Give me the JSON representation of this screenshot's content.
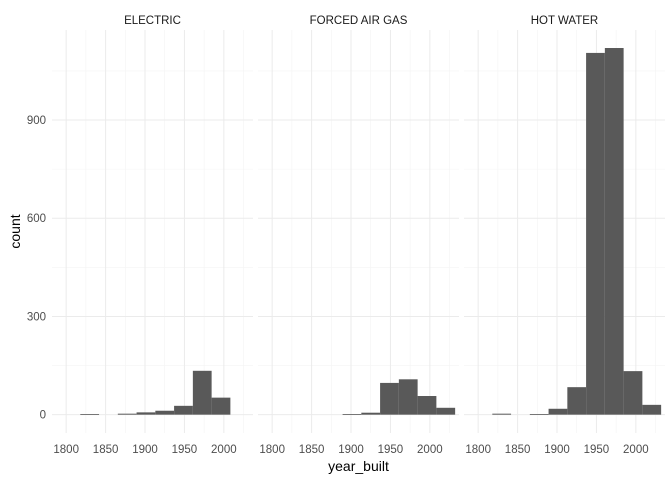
{
  "chart_data": {
    "type": "bar",
    "subtype": "histogram-faceted",
    "xlabel": "year_built",
    "ylabel": "count",
    "x_range": [
      1782,
      2037
    ],
    "y_range": [
      -56,
      1175
    ],
    "x_ticks": [
      1800,
      1850,
      1900,
      1950,
      2000
    ],
    "x_tick_labels": [
      "1800",
      "1850",
      "1900",
      "1950",
      "2000"
    ],
    "y_ticks": [
      0,
      300,
      600,
      900
    ],
    "y_tick_labels": [
      "0",
      "300",
      "600",
      "900"
    ],
    "grid": true,
    "bar_color": "#595959",
    "bin_width": 23.8,
    "bin_centers": [
      1806,
      1829.8,
      1853.6,
      1877.4,
      1901.2,
      1925,
      1948.8,
      1972.6,
      1996.4,
      2020.2
    ],
    "facets": [
      {
        "title": "ELECTRIC",
        "counts": [
          0,
          2,
          0,
          3,
          7,
          12,
          27,
          134,
          52,
          0
        ]
      },
      {
        "title": "FORCED AIR GAS",
        "counts": [
          0,
          0,
          0,
          0,
          2,
          6,
          97,
          108,
          57,
          21
        ]
      },
      {
        "title": "HOT WATER",
        "counts": [
          0,
          3,
          0,
          2,
          18,
          84,
          1105,
          1120,
          133,
          30
        ]
      }
    ]
  }
}
